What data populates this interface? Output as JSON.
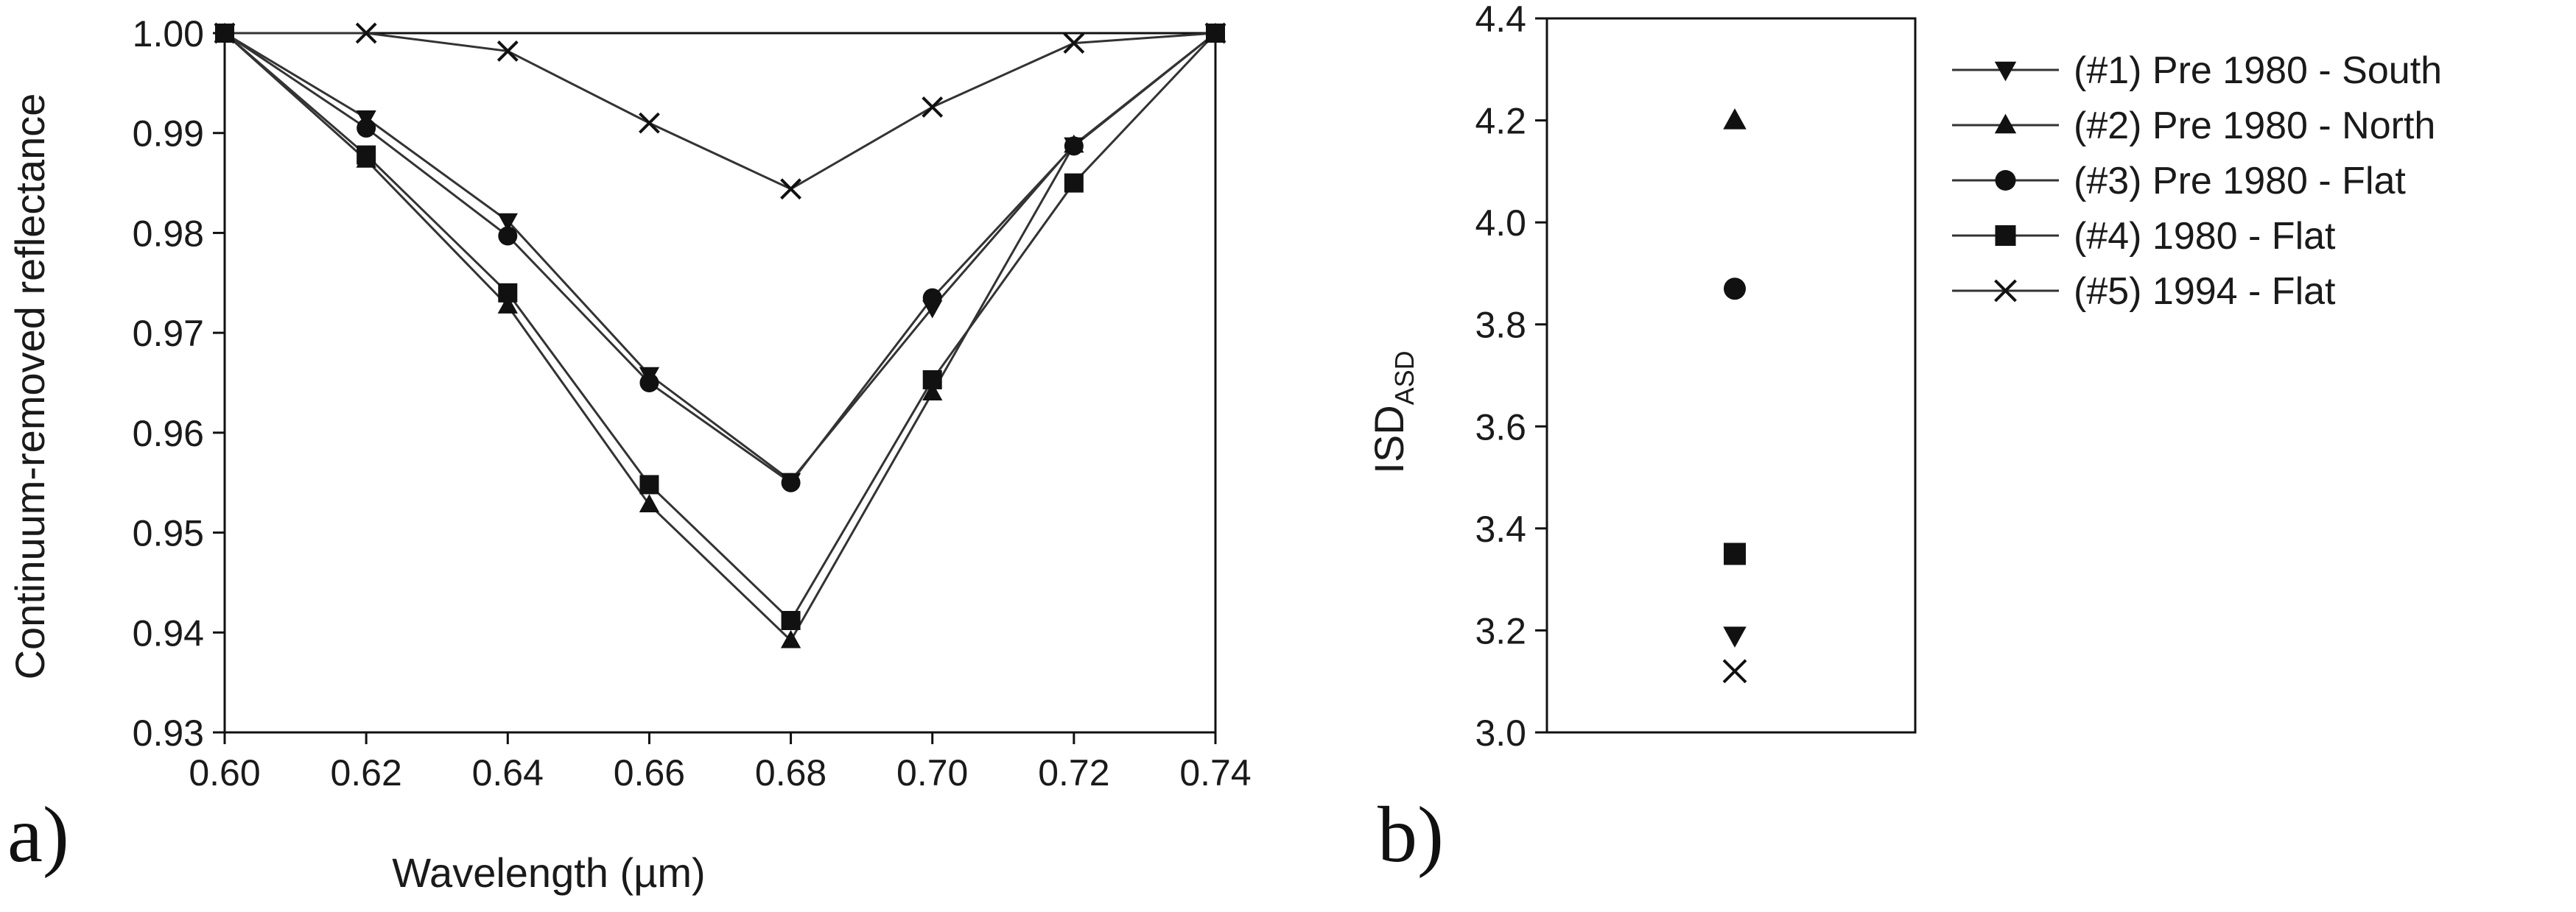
{
  "chart_data": [
    {
      "type": "line",
      "panel_label": "a)",
      "xlabel": "Wavelength (µm)",
      "ylabel": "Continuum-removed reflectance",
      "xlim": [
        0.6,
        0.74
      ],
      "ylim": [
        0.93,
        1.0
      ],
      "xticks": [
        "0.60",
        "0.62",
        "0.64",
        "0.66",
        "0.68",
        "0.70",
        "0.72",
        "0.74"
      ],
      "yticks": [
        "0.93",
        "0.94",
        "0.95",
        "0.96",
        "0.97",
        "0.98",
        "0.99",
        "1.00"
      ],
      "grid": false,
      "x": [
        0.6,
        0.62,
        0.64,
        0.66,
        0.68,
        0.7,
        0.72,
        0.74
      ],
      "series": [
        {
          "name": "(#1) Pre 1980 - South",
          "marker": "triangle-down",
          "values": [
            1.0,
            0.9915,
            0.9812,
            0.9658,
            0.9552,
            0.9725,
            0.9888,
            1.0
          ]
        },
        {
          "name": "(#2) Pre 1980 - North",
          "marker": "triangle-up",
          "values": [
            1.0,
            0.9873,
            0.9727,
            0.9528,
            0.9392,
            0.964,
            0.9888,
            1.0
          ]
        },
        {
          "name": "(#3) Pre 1980 - Flat",
          "marker": "circle",
          "values": [
            1.0,
            0.9905,
            0.9797,
            0.965,
            0.955,
            0.9735,
            0.9887,
            1.0
          ]
        },
        {
          "name": "(#4) 1980 - Flat",
          "marker": "square",
          "values": [
            1.0,
            0.9878,
            0.974,
            0.9548,
            0.9412,
            0.9653,
            0.985,
            1.0
          ]
        },
        {
          "name": "(#5) 1994 - Flat",
          "marker": "x",
          "values": [
            1.0,
            1.0,
            0.9982,
            0.991,
            0.9844,
            0.9926,
            0.999,
            1.0
          ]
        }
      ]
    },
    {
      "type": "scatter",
      "panel_label": "b)",
      "ylabel": "ISD",
      "ylabel_subscript": "ASD",
      "ylim": [
        3.0,
        4.4
      ],
      "yticks": [
        "3.0",
        "3.2",
        "3.4",
        "3.6",
        "3.8",
        "4.0",
        "4.2",
        "4.4"
      ],
      "grid": false,
      "legend_position": "right",
      "points": [
        {
          "series": "(#1) Pre 1980 - South",
          "marker": "triangle-down",
          "y": 3.19
        },
        {
          "series": "(#2) Pre 1980 - North",
          "marker": "triangle-up",
          "y": 4.2
        },
        {
          "series": "(#3) Pre 1980 - Flat",
          "marker": "circle",
          "y": 3.87
        },
        {
          "series": "(#4) 1980 - Flat",
          "marker": "square",
          "y": 3.35
        },
        {
          "series": "(#5) 1994 - Flat",
          "marker": "x",
          "y": 3.12
        }
      ]
    }
  ],
  "legend": {
    "position": "right",
    "entries": [
      {
        "label": "(#1) Pre 1980 - South",
        "marker": "triangle-down"
      },
      {
        "label": "(#2) Pre 1980 - North",
        "marker": "triangle-up"
      },
      {
        "label": "(#3) Pre 1980 - Flat",
        "marker": "circle"
      },
      {
        "label": "(#4) 1980 - Flat",
        "marker": "square"
      },
      {
        "label": "(#5) 1994 - Flat",
        "marker": "x"
      }
    ]
  },
  "colors": {
    "ink": "#111111",
    "line": "#333333"
  }
}
